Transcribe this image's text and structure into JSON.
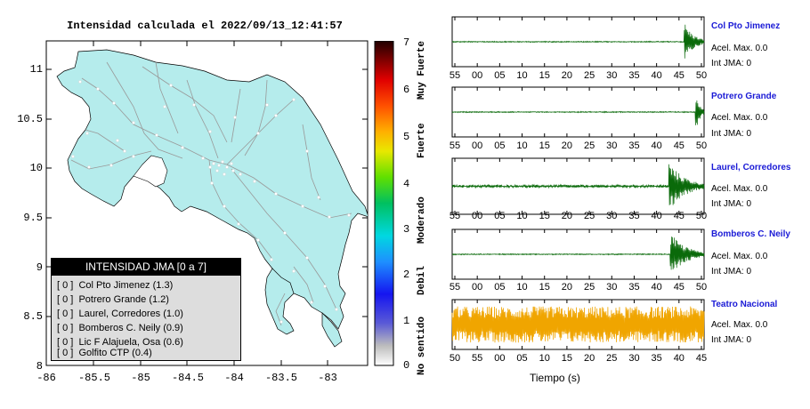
{
  "map": {
    "title": "Intensidad calculada el 2022/09/13_12:41:57",
    "lat_ticks": [
      "11",
      "10.5",
      "10",
      "9.5",
      "9",
      "8.5",
      "8"
    ],
    "lon_ticks": [
      "-86",
      "-85.5",
      "-85",
      "-84.5",
      "-84",
      "-83.5",
      "-83"
    ],
    "land_color": "#b5ecec"
  },
  "legend": {
    "header": "INTENSIDAD JMA [0 a 7]",
    "items": [
      {
        "badge": "[ 0 ]",
        "name": "Col Pto Jimenez (1.3)"
      },
      {
        "badge": "[ 0 ]",
        "name": "Potrero Grande (1.2)"
      },
      {
        "badge": "[ 0 ]",
        "name": "Laurel, Corredores (1.0)"
      },
      {
        "badge": "[ 0 ]",
        "name": "Bomberos C. Neily (0.9)"
      },
      {
        "badge": "[ 0 ]",
        "name": "Lic F Alajuela, Osa (0.6)"
      },
      {
        "badge": "[ 0 ]",
        "name": "Golfito CTP (0.4)"
      }
    ]
  },
  "colorbar": {
    "ticks": [
      "7",
      "6",
      "5",
      "4",
      "3",
      "2",
      "1",
      "0"
    ],
    "labels": [
      "Muy Fuerte",
      "Fuerte",
      "Moderado",
      "Debil",
      "No sentido"
    ]
  },
  "stations": [
    {
      "name": "Col Pto Jimenez",
      "acel": "Acel. Max. 0.0",
      "jma": "Int JMA: 0",
      "ticks": [
        "55",
        "00",
        "05",
        "10",
        "15",
        "20",
        "25",
        "30",
        "35",
        "40",
        "45",
        "50"
      ],
      "color": "#0a6a0a",
      "event_at": 0.92,
      "event_amp": 0.9
    },
    {
      "name": "Potrero Grande",
      "acel": "Acel. Max. 0.0",
      "jma": "Int JMA: 0",
      "ticks": [
        "55",
        "00",
        "05",
        "10",
        "15",
        "20",
        "25",
        "30",
        "35",
        "40",
        "45",
        "50"
      ],
      "color": "#0a6a0a",
      "event_at": 0.965,
      "event_amp": 0.95
    },
    {
      "name": "Laurel, Corredores",
      "acel": "Acel. Max. 0.0",
      "jma": "Int JMA: 0",
      "ticks": [
        "55",
        "00",
        "05",
        "10",
        "15",
        "20",
        "25",
        "30",
        "35",
        "40",
        "45",
        "50"
      ],
      "color": "#0a6a0a",
      "event_at": 0.86,
      "event_amp": 0.95
    },
    {
      "name": "Bomberos C. Neily",
      "acel": "Acel. Max. 0.0",
      "jma": "Int JMA: 0",
      "ticks": [
        "55",
        "00",
        "05",
        "10",
        "15",
        "20",
        "25",
        "30",
        "35",
        "40",
        "45",
        "50"
      ],
      "color": "#0a6a0a",
      "event_at": 0.865,
      "event_amp": 0.95
    },
    {
      "name": "Teatro Nacional",
      "acel": "Acel. Max. 0.0",
      "jma": "Int JMA: 0",
      "ticks": [
        "50",
        "55",
        "00",
        "05",
        "10",
        "15",
        "20",
        "25",
        "30",
        "35",
        "40",
        "45"
      ],
      "color": "#f0a500",
      "event_at": -1,
      "event_amp": 0.85
    }
  ],
  "xlabel": "Tiempo (s)"
}
